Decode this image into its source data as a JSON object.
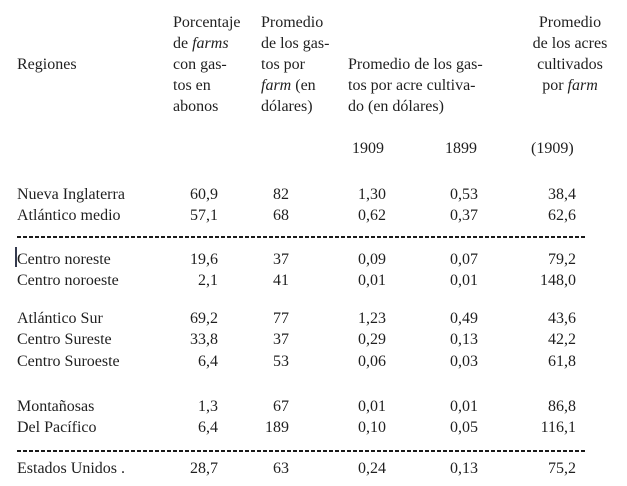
{
  "document": {
    "header": {
      "col_regions_label": "Regiones",
      "col_pct": {
        "l1": "Porcentaje",
        "l2_pre": "de ",
        "l2_italic": "farms",
        "l3": "con gas-",
        "l4": "tos en",
        "l5": "abonos"
      },
      "col_per_farm": {
        "l1": "Promedio",
        "l2": "de los gas-",
        "l3": "tos por",
        "l4_italic": "farm",
        "l4_post": " (en",
        "l5": "dólares)"
      },
      "col_per_acre": {
        "l1": "Promedio de los gas-",
        "l2": "tos por acre cultiva-",
        "l3": "do (en dólares)"
      },
      "col_acres": {
        "l1": "Promedio",
        "l2": "de los acres",
        "l3": "cultivados",
        "l4_pre": "por ",
        "l4_italic": "farm"
      },
      "subyears": {
        "y1909": "1909",
        "y1899": "1899",
        "y1909_paren": "(1909)"
      }
    },
    "rows": [
      {
        "name": "Nueva Inglaterra",
        "pct": "60,9",
        "per_farm": "82",
        "acre1909": "1,30",
        "acre1899": "0,53",
        "acres": "38,4"
      },
      {
        "name": "Atlántico medio",
        "pct": "57,1",
        "per_farm": "68",
        "acre1909": "0,62",
        "acre1899": "0,37",
        "acres": "62,6"
      },
      {
        "name": "Centro noreste",
        "pct": "19,6",
        "per_farm": "37",
        "acre1909": "0,09",
        "acre1899": "0,07",
        "acres": "79,2"
      },
      {
        "name": "Centro noroeste",
        "pct": "2,1",
        "per_farm": "41",
        "acre1909": "0,01",
        "acre1899": "0,01",
        "acres": "148,0"
      },
      {
        "name": "Atlántico Sur",
        "pct": "69,2",
        "per_farm": "77",
        "acre1909": "1,23",
        "acre1899": "0,49",
        "acres": "43,6"
      },
      {
        "name": "Centro Sureste",
        "pct": "33,8",
        "per_farm": "37",
        "acre1909": "0,29",
        "acre1899": "0,13",
        "acres": "42,2"
      },
      {
        "name": "Centro Suroeste",
        "pct": "6,4",
        "per_farm": "53",
        "acre1909": "0,06",
        "acre1899": "0,03",
        "acres": "61,8"
      },
      {
        "name": "Montañosas",
        "pct": "1,3",
        "per_farm": "67",
        "acre1909": "0,01",
        "acre1899": "0,01",
        "acres": "86,8"
      },
      {
        "name": "Del Pacífico",
        "pct": "6,4",
        "per_farm": "189",
        "acre1909": "0,10",
        "acre1899": "0,05",
        "acres": "116,1"
      }
    ],
    "total": {
      "name": "Estados Unidos .",
      "pct": "28,7",
      "per_farm": "63",
      "acre1909": "0,24",
      "acre1899": "0,13",
      "acres": "75,2"
    }
  }
}
